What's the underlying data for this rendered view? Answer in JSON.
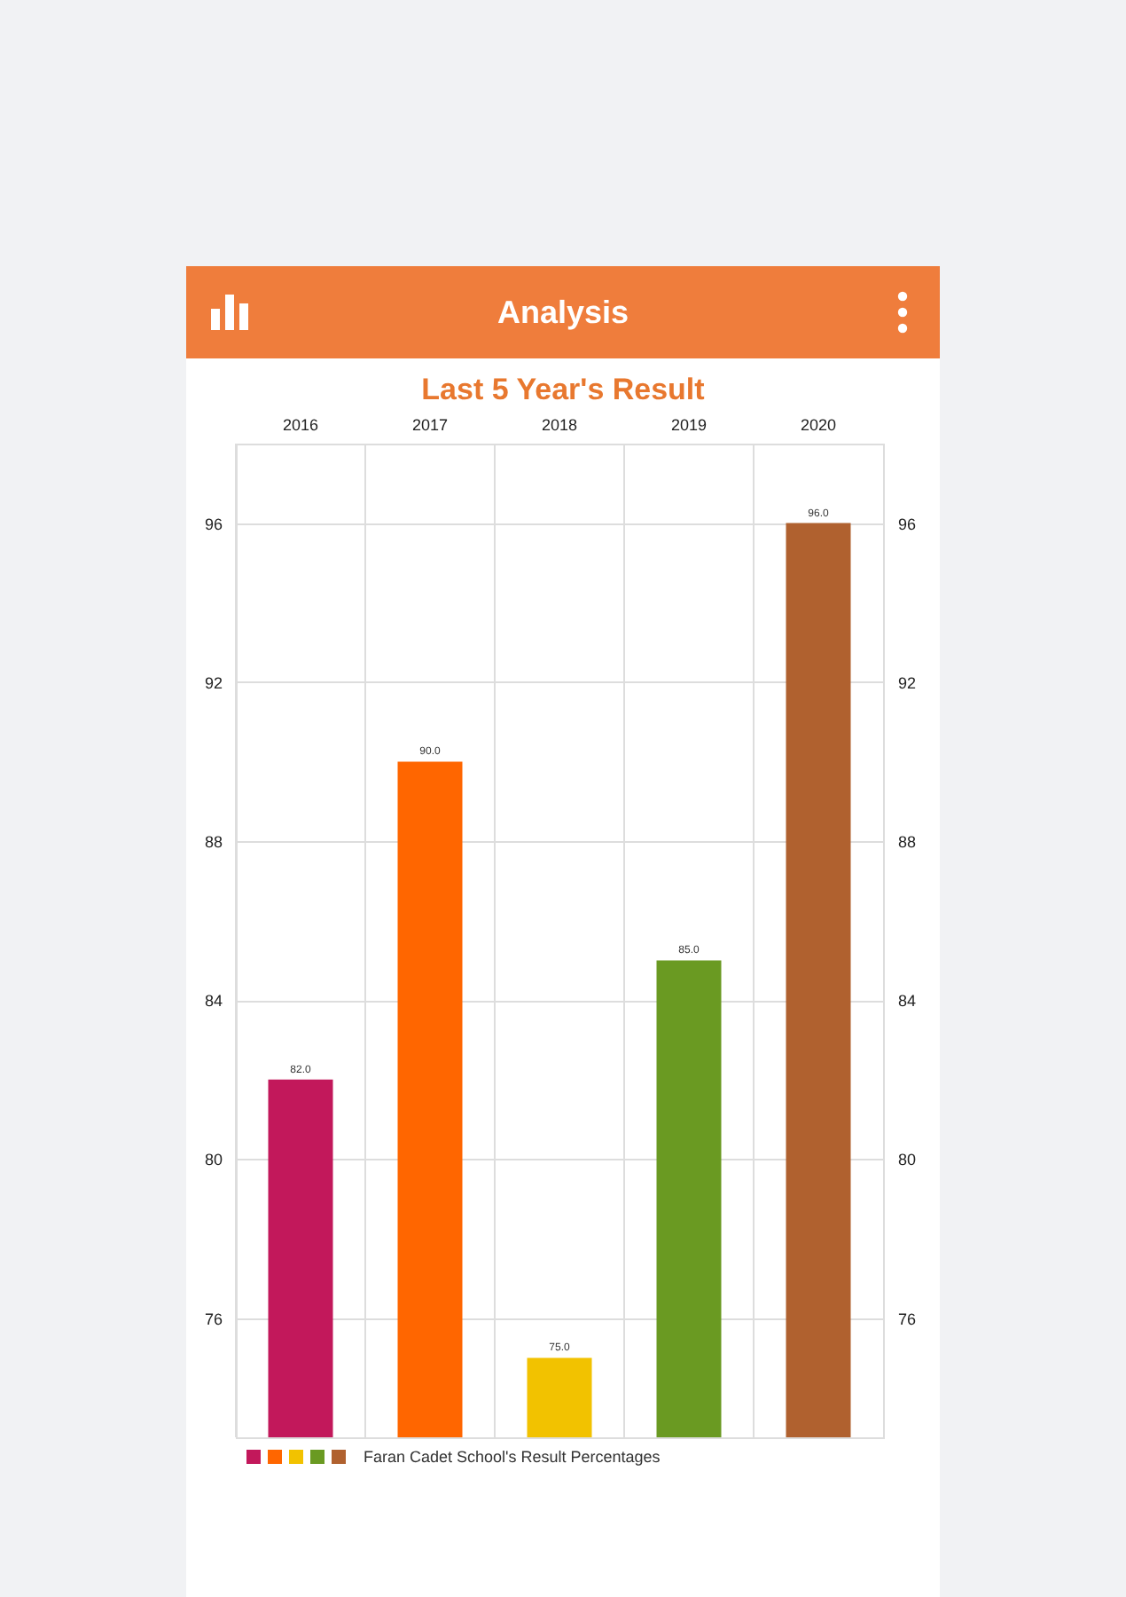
{
  "chart_data": {
    "type": "bar",
    "title": "Last 5 Year's Result",
    "annotations": [
      "Analysis"
    ],
    "categories": [
      "2016",
      "2017",
      "2018",
      "2019",
      "2020"
    ],
    "series": [
      {
        "name": "Faran Cadet School's Result Percentages",
        "values": [
          82.0,
          90.0,
          75.0,
          85.0,
          96.0
        ]
      }
    ],
    "colors": [
      "#c2185b",
      "#ff6600",
      "#f2c200",
      "#6a9a22",
      "#b0612f"
    ],
    "value_labels": [
      "82.0",
      "90.0",
      "75.0",
      "85.0",
      "96.0"
    ],
    "ylim": [
      73,
      98
    ],
    "yticks": [
      76,
      80,
      84,
      88,
      92,
      96
    ],
    "y2lim": [
      73,
      98
    ],
    "y2ticks": [
      76,
      80,
      84,
      88,
      92,
      96
    ],
    "grid": true,
    "legend": "bottom left"
  }
}
